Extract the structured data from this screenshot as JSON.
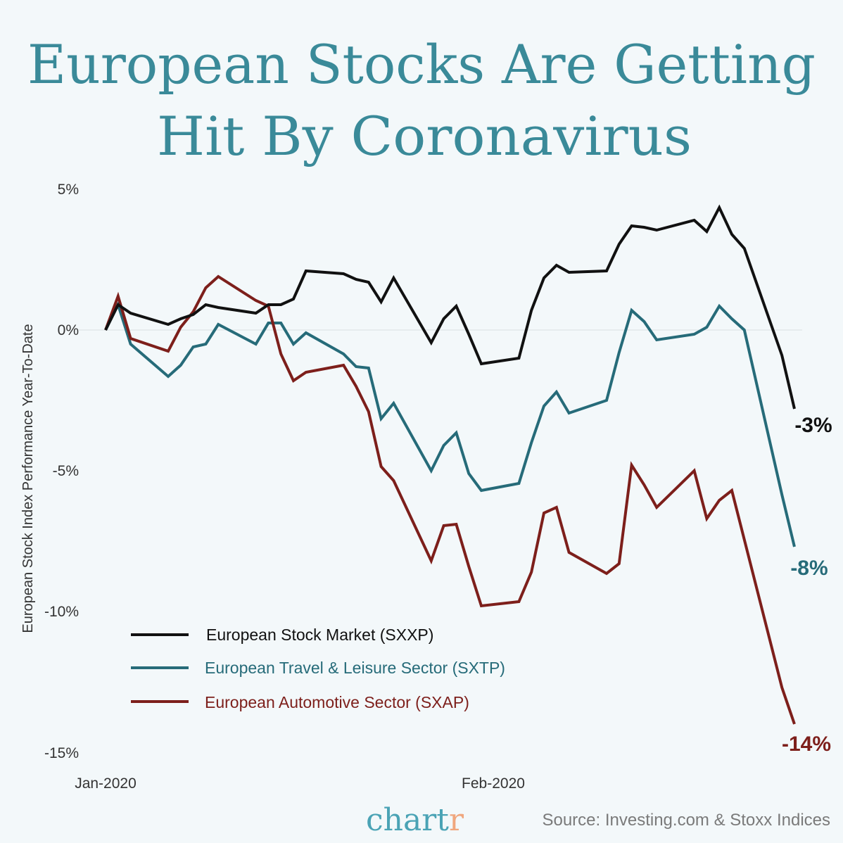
{
  "title": {
    "line1": "European Stocks Are Getting",
    "line2": "Hit By Coronavirus"
  },
  "chart_data": {
    "type": "line",
    "ylabel": "European Stock Index Performance Year-To-Date",
    "xlabel": "",
    "ylim": [
      -15,
      5
    ],
    "yticks": [
      {
        "value": 5,
        "label": "5%"
      },
      {
        "value": 0,
        "label": "0%"
      },
      {
        "value": -5,
        "label": "-5%"
      },
      {
        "value": -10,
        "label": "-10%"
      },
      {
        "value": -15,
        "label": "-15%"
      }
    ],
    "xticks": [
      {
        "date": "2020-01-01",
        "label": "Jan-2020"
      },
      {
        "date": "2020-02-01",
        "label": "Feb-2020"
      }
    ],
    "grid": "zero line only",
    "legend_position": "bottom-left",
    "x": [
      "2020-01-01",
      "2020-01-02",
      "2020-01-03",
      "2020-01-06",
      "2020-01-07",
      "2020-01-08",
      "2020-01-09",
      "2020-01-10",
      "2020-01-13",
      "2020-01-14",
      "2020-01-15",
      "2020-01-16",
      "2020-01-17",
      "2020-01-20",
      "2020-01-21",
      "2020-01-22",
      "2020-01-23",
      "2020-01-24",
      "2020-01-27",
      "2020-01-28",
      "2020-01-29",
      "2020-01-30",
      "2020-01-31",
      "2020-02-03",
      "2020-02-04",
      "2020-02-05",
      "2020-02-06",
      "2020-02-07",
      "2020-02-10",
      "2020-02-11",
      "2020-02-12",
      "2020-02-13",
      "2020-02-14",
      "2020-02-17",
      "2020-02-18",
      "2020-02-19",
      "2020-02-20",
      "2020-02-21",
      "2020-02-24",
      "2020-02-25"
    ],
    "series": [
      {
        "name": "European Stock Market (SXXP)",
        "color": "#111111",
        "end_label": "-3%",
        "values": [
          0,
          0.9,
          0.6,
          0.2,
          0.4,
          0.55,
          0.9,
          0.8,
          0.6,
          0.9,
          0.9,
          1.1,
          2.1,
          2.0,
          1.8,
          1.7,
          1.0,
          1.85,
          -0.45,
          0.4,
          0.85,
          -0.15,
          -1.2,
          -1.0,
          0.7,
          1.85,
          2.3,
          2.05,
          2.1,
          3.05,
          3.7,
          3.65,
          3.55,
          3.9,
          3.5,
          4.35,
          3.4,
          2.9,
          -0.9,
          -2.8
        ]
      },
      {
        "name": "European Travel & Leisure Sector (SXTP)",
        "color": "#266b79",
        "end_label": "-8%",
        "values": [
          0,
          0.9,
          -0.5,
          -1.65,
          -1.25,
          -0.6,
          -0.5,
          0.2,
          -0.5,
          0.25,
          0.25,
          -0.5,
          -0.1,
          -0.85,
          -1.3,
          -1.35,
          -3.15,
          -2.6,
          -5.0,
          -4.1,
          -3.65,
          -5.1,
          -5.7,
          -5.45,
          -4.0,
          -2.7,
          -2.2,
          -2.95,
          -2.5,
          -0.8,
          0.7,
          0.3,
          -0.35,
          -0.15,
          0.1,
          0.85,
          0.4,
          0.0,
          -5.85,
          -7.7
        ]
      },
      {
        "name": "European Automotive Sector (SXAP)",
        "color": "#7d1f1b",
        "end_label": "-14%",
        "values": [
          0,
          1.2,
          -0.3,
          -0.75,
          0.1,
          0.65,
          1.5,
          1.9,
          1.05,
          0.85,
          -0.85,
          -1.8,
          -1.5,
          -1.25,
          -2.0,
          -2.9,
          -4.85,
          -5.35,
          -8.2,
          -6.95,
          -6.9,
          -8.4,
          -9.8,
          -9.65,
          -8.6,
          -6.5,
          -6.3,
          -7.9,
          -8.65,
          -8.3,
          -4.8,
          -5.5,
          -6.3,
          -5.0,
          -6.7,
          -6.05,
          -5.7,
          -7.45,
          -12.7,
          -14.0
        ]
      }
    ]
  },
  "footer": {
    "logo": "chartr",
    "logo_colors": {
      "main": "#4aa3b5",
      "accent": "#f0a77e"
    },
    "source": "Source: Investing.com & Stoxx Indices"
  }
}
